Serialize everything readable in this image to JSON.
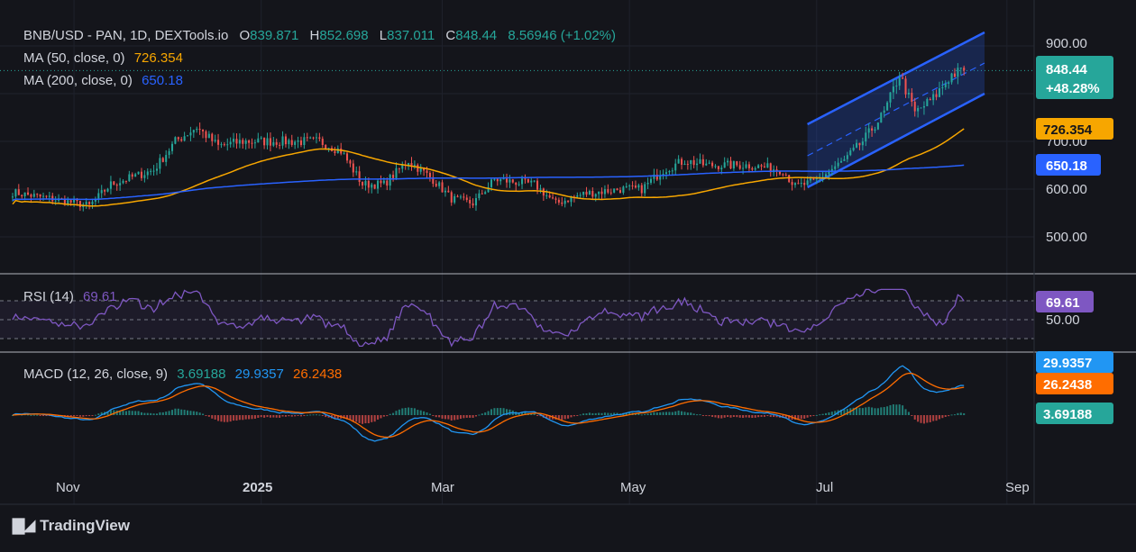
{
  "header": {
    "symbol": "BNB/USD - PAN, 1D, DEXTools.io",
    "o_label": "O",
    "o": "839.871",
    "h_label": "H",
    "h": "852.698",
    "l_label": "L",
    "l": "837.011",
    "c_label": "C",
    "c": "848.44",
    "change": "8.56946 (+1.02%)"
  },
  "ma50": {
    "label": "MA (50, close, 0)",
    "value": "726.354"
  },
  "ma200": {
    "label": "MA (200, close, 0)",
    "value": "650.18"
  },
  "rsi": {
    "label": "RSI (14)",
    "value": "69.61"
  },
  "macd": {
    "label": "MACD (12, 26, close, 9)",
    "hist": "3.69188",
    "macd": "29.9357",
    "signal": "26.2438"
  },
  "price_badge": {
    "price": "848.44",
    "pct": "+48.28%"
  },
  "price_axis": [
    "900.00",
    "700.00",
    "600.00",
    "500.00"
  ],
  "rsi_axis": [
    "50.00"
  ],
  "time_axis": [
    "Nov",
    "2025",
    "Mar",
    "May",
    "Jul",
    "Sep"
  ],
  "brand": "TradingView",
  "colors": {
    "up": "#26a69a",
    "down": "#ef5350",
    "ma50": "#f7a600",
    "ma200": "#2962ff",
    "rsi": "#7e57c2",
    "macd": "#2196f3",
    "signal": "#ff6d00",
    "channel": "#2962ff"
  },
  "chart_data": {
    "type": "candlestick",
    "title": "BNB/USD - PAN, 1D, DEXTools.io",
    "ylim": [
      450,
      930
    ],
    "price_ticks": [
      900,
      700,
      600,
      500
    ],
    "x_months": [
      "Nov",
      "2025",
      "Mar",
      "May",
      "Jul",
      "Sep"
    ],
    "close_path_approx": [
      [
        "2024-10-15",
        590
      ],
      [
        "2024-10-29",
        575
      ],
      [
        "2024-11-06",
        565
      ],
      [
        "2024-11-13",
        610
      ],
      [
        "2024-11-27",
        640
      ],
      [
        "2024-12-04",
        700
      ],
      [
        "2024-12-11",
        730
      ],
      [
        "2024-12-18",
        690
      ],
      [
        "2024-12-26",
        700
      ],
      [
        "2025-01-08",
        700
      ],
      [
        "2025-01-20",
        700
      ],
      [
        "2025-01-27",
        680
      ],
      [
        "2025-02-03",
        610
      ],
      [
        "2025-02-10",
        610
      ],
      [
        "2025-02-18",
        660
      ],
      [
        "2025-02-26",
        620
      ],
      [
        "2025-03-04",
        580
      ],
      [
        "2025-03-11",
        570
      ],
      [
        "2025-03-18",
        620
      ],
      [
        "2025-03-31",
        610
      ],
      [
        "2025-04-07",
        570
      ],
      [
        "2025-04-16",
        590
      ],
      [
        "2025-04-28",
        600
      ],
      [
        "2025-05-05",
        600
      ],
      [
        "2025-05-12",
        640
      ],
      [
        "2025-05-19",
        660
      ],
      [
        "2025-05-26",
        650
      ],
      [
        "2025-06-09",
        650
      ],
      [
        "2025-06-20",
        640
      ],
      [
        "2025-06-24",
        605
      ],
      [
        "2025-06-30",
        615
      ],
      [
        "2025-07-10",
        660
      ],
      [
        "2025-07-16",
        700
      ],
      [
        "2025-07-23",
        760
      ],
      [
        "2025-07-28",
        840
      ],
      [
        "2025-08-02",
        760
      ],
      [
        "2025-08-08",
        790
      ],
      [
        "2025-08-14",
        840
      ],
      [
        "2025-08-18",
        848.44
      ]
    ],
    "ma50_value": 726.354,
    "ma200_value": 650.18,
    "rsi": {
      "value": 69.61,
      "levels": [
        70,
        50,
        30
      ]
    },
    "macd": {
      "macd": 29.9357,
      "signal": 26.2438,
      "histogram": 3.69188
    }
  }
}
